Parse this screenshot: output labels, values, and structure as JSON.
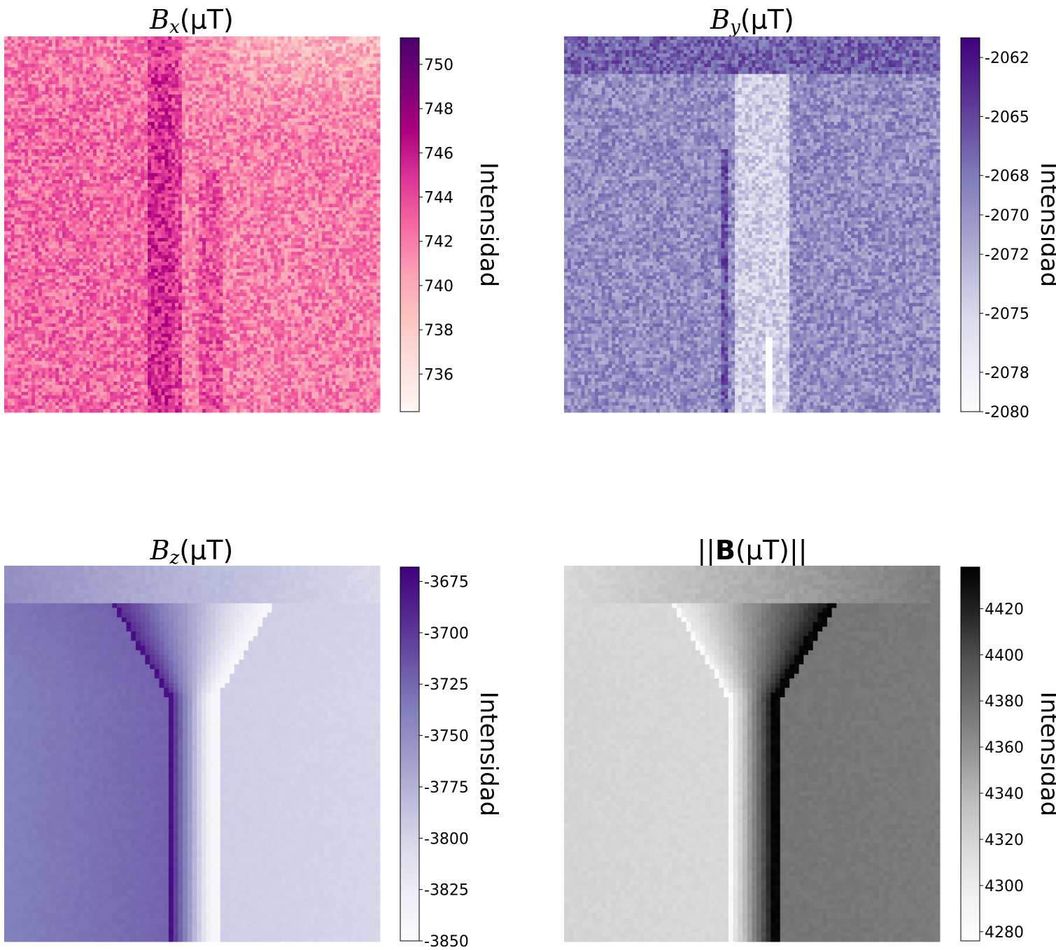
{
  "chart_data": [
    {
      "type": "heatmap",
      "title": "B_x(μT)",
      "title_parts": {
        "sym": "B",
        "sub": "x",
        "unit": "(μT)"
      },
      "colormap": "RdPu",
      "colorbar": {
        "label": "Intensidad",
        "range": [
          734.3,
          751.2
        ],
        "ticks": [
          "750",
          "748",
          "746",
          "744",
          "742",
          "740",
          "738",
          "736"
        ],
        "tick_values": [
          750,
          748,
          746,
          744,
          742,
          740,
          738,
          736
        ]
      },
      "pattern": "noisy"
    },
    {
      "type": "heatmap",
      "title": "B_y(μT)",
      "title_parts": {
        "sym": "B",
        "sub": "y",
        "unit": "(μT)"
      },
      "colormap": "Purples",
      "colorbar": {
        "label": "Intensidad",
        "range": [
          -2080,
          -2061
        ],
        "ticks": [
          "-2062",
          "-2065",
          "-2068",
          "-2070",
          "-2072",
          "-2075",
          "-2078",
          "-2080"
        ],
        "tick_values": [
          -2062,
          -2065,
          -2068,
          -2070,
          -2072,
          -2075,
          -2078,
          -2080
        ]
      },
      "pattern": "noisy"
    },
    {
      "type": "heatmap",
      "title": "B_z(μT)",
      "title_parts": {
        "sym": "B",
        "sub": "z",
        "unit": "(μT)"
      },
      "colormap": "Purples",
      "colorbar": {
        "label": "Intensidad",
        "range": [
          -3850,
          -3668
        ],
        "ticks": [
          "-3675",
          "-3700",
          "-3725",
          "-3750",
          "-3775",
          "-3800",
          "-3825",
          "-3850"
        ],
        "tick_values": [
          -3675,
          -3700,
          -3725,
          -3750,
          -3775,
          -3800,
          -3825,
          -3850
        ]
      },
      "pattern": "smooth"
    },
    {
      "type": "heatmap",
      "title": "||B(μT)||",
      "title_parts": {
        "pre": "||",
        "bold": "B",
        "unit": "(μT)",
        "post": "||"
      },
      "colormap": "Greys",
      "colorbar": {
        "label": "Intensidad",
        "range": [
          4276,
          4438
        ],
        "ticks": [
          "4420",
          "4400",
          "4380",
          "4360",
          "4340",
          "4320",
          "4300",
          "4280"
        ],
        "tick_values": [
          4420,
          4400,
          4380,
          4360,
          4340,
          4320,
          4300,
          4280
        ]
      },
      "pattern": "smooth"
    }
  ],
  "colors": {
    "RdPu": [
      "#fff7f3",
      "#fde0dd",
      "#fcc5c0",
      "#fa9fb5",
      "#f768a1",
      "#dd3497",
      "#ae017e",
      "#7a0177",
      "#49006a"
    ],
    "Purples": [
      "#fcfbfd",
      "#efedf5",
      "#dadaeb",
      "#bcbddc",
      "#9e9ac8",
      "#807dba",
      "#6a51a3",
      "#54278f",
      "#3f007d"
    ],
    "Greys": [
      "#ffffff",
      "#f0f0f0",
      "#d9d9d9",
      "#bdbdbd",
      "#969696",
      "#737373",
      "#525252",
      "#252525",
      "#000000"
    ]
  }
}
